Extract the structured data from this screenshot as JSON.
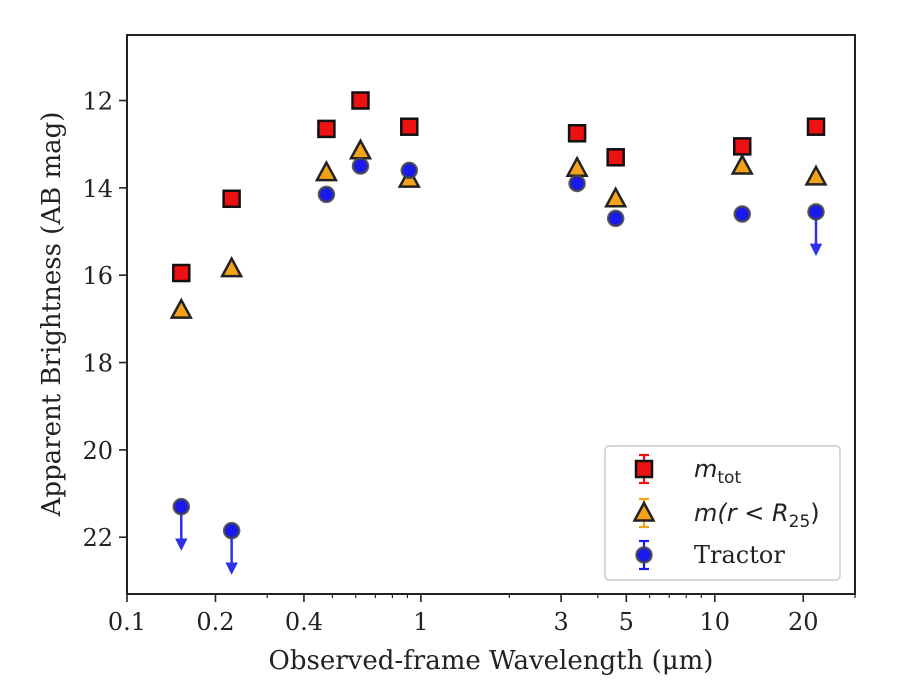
{
  "chart_data": {
    "type": "scatter",
    "title": "",
    "xlabel": "Observed-frame Wavelength (μm)",
    "ylabel": "Apparent Brightness (AB mag)",
    "xscale": "log",
    "xlim": [
      0.1,
      30
    ],
    "ylim": [
      23.3,
      10.5
    ],
    "y_inverted": true,
    "grid": false,
    "legend_position": "lower-right",
    "x_tick_labels": [
      "0.1",
      "0.2",
      "0.4",
      "1",
      "3",
      "5",
      "10",
      "20"
    ],
    "x_tick_values": [
      0.1,
      0.2,
      0.4,
      1,
      3,
      5,
      10,
      20
    ],
    "y_tick_values": [
      12,
      14,
      16,
      18,
      20,
      22
    ],
    "y_tick_labels": [
      "12",
      "14",
      "16",
      "18",
      "20",
      "22"
    ],
    "series": [
      {
        "name": "m_tot",
        "legend_label": "m",
        "legend_sub": "tot",
        "marker": "square",
        "color": "#ee1111",
        "points": [
          {
            "x": 0.153,
            "y": 15.95
          },
          {
            "x": 0.227,
            "y": 14.25
          },
          {
            "x": 0.477,
            "y": 12.65
          },
          {
            "x": 0.623,
            "y": 12.0
          },
          {
            "x": 0.913,
            "y": 12.6
          },
          {
            "x": 3.4,
            "y": 12.75
          },
          {
            "x": 4.6,
            "y": 13.3
          },
          {
            "x": 12.4,
            "y": 13.05
          },
          {
            "x": 22.1,
            "y": 12.6
          }
        ]
      },
      {
        "name": "m(r < R25)",
        "legend_label": "m(r < R",
        "legend_sub": "25",
        "legend_suffix": ")",
        "marker": "triangle",
        "color": "#f5a21b",
        "points": [
          {
            "x": 0.153,
            "y": 16.8
          },
          {
            "x": 0.227,
            "y": 15.85
          },
          {
            "x": 0.477,
            "y": 13.65
          },
          {
            "x": 0.623,
            "y": 13.15
          },
          {
            "x": 0.913,
            "y": 13.8
          },
          {
            "x": 3.4,
            "y": 13.55
          },
          {
            "x": 4.6,
            "y": 14.25
          },
          {
            "x": 12.4,
            "y": 13.5
          },
          {
            "x": 22.1,
            "y": 13.75
          }
        ]
      },
      {
        "name": "Tractor",
        "legend_label": "Tractor",
        "marker": "circle",
        "color": "#1a1aee",
        "points": [
          {
            "x": 0.153,
            "y": 21.3,
            "upper_limit": true
          },
          {
            "x": 0.227,
            "y": 21.85,
            "upper_limit": true
          },
          {
            "x": 0.477,
            "y": 14.15
          },
          {
            "x": 0.623,
            "y": 13.5
          },
          {
            "x": 0.913,
            "y": 13.6
          },
          {
            "x": 3.4,
            "y": 13.9
          },
          {
            "x": 4.6,
            "y": 14.7
          },
          {
            "x": 12.4,
            "y": 14.6
          },
          {
            "x": 22.1,
            "y": 14.55,
            "upper_limit": true
          }
        ]
      }
    ]
  }
}
